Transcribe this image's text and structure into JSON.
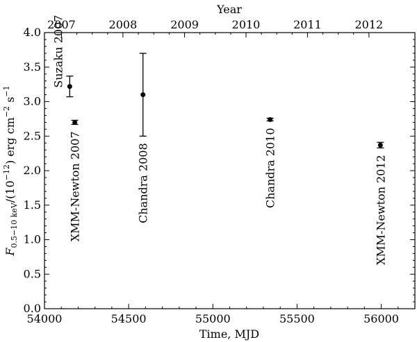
{
  "chart_data": {
    "type": "scatter",
    "title": "",
    "xlabel": "Time, MJD",
    "ylabel_main": "F",
    "ylabel_sub": "0.5−10 keV",
    "ylabel_rest": "/(10",
    "ylabel_exp1": "−12",
    "ylabel_rest2": ") erg cm",
    "ylabel_exp2": "−2",
    "ylabel_rest3": " s",
    "ylabel_exp3": "−1",
    "top_xlabel": "Year",
    "xlim": [
      54000,
      56200
    ],
    "ylim": [
      0.0,
      4.0
    ],
    "grid": false,
    "x_ticks": [
      "54000",
      "54500",
      "55000",
      "55500",
      "56000"
    ],
    "x_tick_values": [
      54000,
      54500,
      55000,
      55500,
      56000
    ],
    "y_ticks": [
      "0.0",
      "0.5",
      "1.0",
      "1.5",
      "2.0",
      "2.5",
      "3.0",
      "3.5",
      "4.0"
    ],
    "y_tick_values": [
      0.0,
      0.5,
      1.0,
      1.5,
      2.0,
      2.5,
      3.0,
      3.5,
      4.0
    ],
    "top_ticks": [
      {
        "label": "2007",
        "mjd": 54101
      },
      {
        "label": "2008",
        "mjd": 54466
      },
      {
        "label": "2009",
        "mjd": 54832
      },
      {
        "label": "2010",
        "mjd": 55197
      },
      {
        "label": "2011",
        "mjd": 55562
      },
      {
        "label": "2012",
        "mjd": 55927
      }
    ],
    "points": [
      {
        "label": "Suzaku 2007",
        "x": 54150,
        "y": 3.22,
        "yerr_low": 0.15,
        "yerr_high": 0.15
      },
      {
        "label": "XMM-Newton 2007",
        "x": 54180,
        "y": 2.7,
        "yerr_low": 0.03,
        "yerr_high": 0.03
      },
      {
        "label": "Chandra 2008",
        "x": 54585,
        "y": 3.1,
        "yerr_low": 0.6,
        "yerr_high": 0.6
      },
      {
        "label": "Chandra 2010",
        "x": 55340,
        "y": 2.74,
        "yerr_low": 0.02,
        "yerr_high": 0.02
      },
      {
        "label": "XMM-Newton 2012",
        "x": 55995,
        "y": 2.37,
        "yerr_low": 0.04,
        "yerr_high": 0.04
      }
    ]
  }
}
